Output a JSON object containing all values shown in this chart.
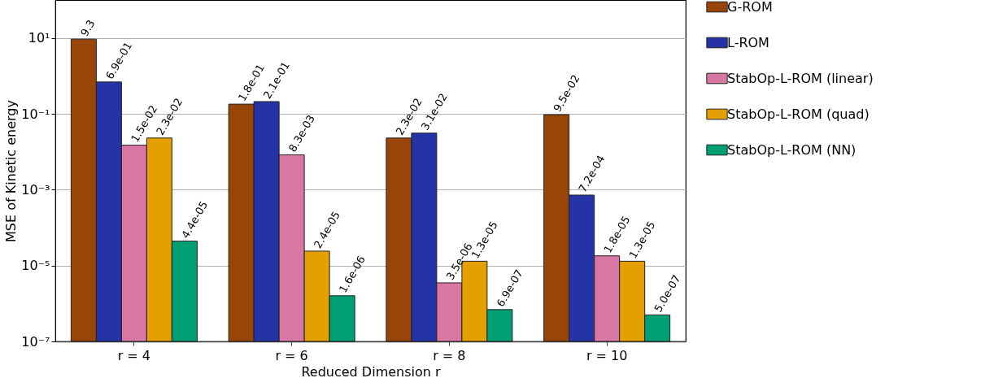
{
  "chart_data": {
    "type": "bar",
    "xlabel": "Reduced Dimension r",
    "ylabel": "MSE of Kinetic energy",
    "categories": [
      "r = 4",
      "r = 6",
      "r = 8",
      "r = 10"
    ],
    "series": [
      {
        "name": "G-ROM",
        "color": "#984509",
        "values": [
          9.3,
          0.18,
          0.023,
          0.095
        ],
        "value_labels": [
          "9.3",
          "1.8e-01",
          "2.3e-02",
          "9.5e-02"
        ]
      },
      {
        "name": "L-ROM",
        "color": "#2433a6",
        "values": [
          0.69,
          0.21,
          0.031,
          0.00072
        ],
        "value_labels": [
          "6.9e-01",
          "2.1e-01",
          "3.1e-02",
          "7.2e-04"
        ]
      },
      {
        "name": "StabOp-L-ROM (linear)",
        "color": "#d876a4",
        "values": [
          0.015,
          0.0083,
          3.5e-06,
          1.8e-05
        ],
        "value_labels": [
          "1.5e-02",
          "8.3e-03",
          "3.5e-06",
          "1.8e-05"
        ]
      },
      {
        "name": "StabOp-L-ROM (quad)",
        "color": "#e4a000",
        "values": [
          0.023,
          2.4e-05,
          1.3e-05,
          1.3e-05
        ],
        "value_labels": [
          "2.3e-02",
          "2.4e-05",
          "1.3e-05",
          "1.3e-05"
        ]
      },
      {
        "name": "StabOp-L-ROM (NN)",
        "color": "#009e73",
        "values": [
          4.4e-05,
          1.6e-06,
          6.9e-07,
          5e-07
        ],
        "value_labels": [
          "4.4e-05",
          "1.6e-06",
          "6.9e-07",
          "5.0e-07"
        ]
      }
    ],
    "log": true,
    "ylim": [
      1e-07,
      100
    ],
    "yticks": [
      {
        "value": 1e-07,
        "label": "10⁻⁷"
      },
      {
        "value": 1e-05,
        "label": "10⁻⁵"
      },
      {
        "value": 0.001,
        "label": "10⁻³"
      },
      {
        "value": 0.1,
        "label": "10⁻¹"
      },
      {
        "value": 10,
        "label": "10¹"
      }
    ],
    "grid": "y",
    "legend": "right"
  }
}
